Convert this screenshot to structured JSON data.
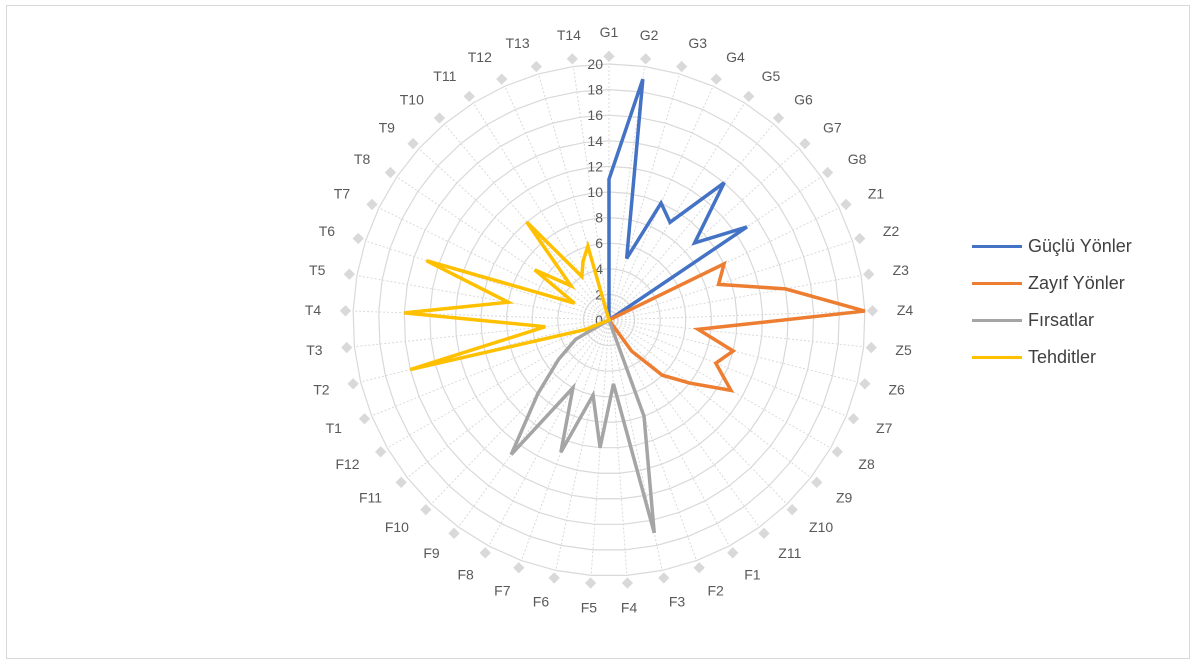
{
  "chart_data": {
    "type": "radar",
    "categories": [
      "G1",
      "G2",
      "G3",
      "G4",
      "G5",
      "G6",
      "G7",
      "G8",
      "Z1",
      "Z2",
      "Z3",
      "Z4",
      "Z5",
      "Z6",
      "Z7",
      "Z8",
      "Z9",
      "Z10",
      "Z11",
      "F1",
      "F2",
      "F3",
      "F4",
      "F5",
      "F6",
      "F7",
      "F8",
      "F9",
      "F10",
      "F11",
      "F12",
      "T1",
      "T2",
      "T3",
      "T4",
      "T5",
      "T6",
      "T7",
      "T8",
      "T9",
      "T10",
      "T11",
      "T12",
      "T13",
      "T14"
    ],
    "axis_ticks": [
      "0",
      "2",
      "4",
      "6",
      "8",
      "10",
      "12",
      "14",
      "16",
      "18",
      "20"
    ],
    "rlim": [
      0,
      20
    ],
    "grid": true,
    "legend_position": "right",
    "series": [
      {
        "name": "Güçlü Yönler",
        "color": "#4472C4",
        "values": [
          11,
          19,
          5,
          10,
          9,
          14,
          9,
          13,
          0,
          0,
          0,
          0,
          0,
          0,
          0,
          0,
          0,
          0,
          0,
          0,
          0,
          0,
          0,
          0,
          0,
          0,
          0,
          0,
          0,
          0,
          0,
          0,
          0,
          0,
          0,
          0,
          0,
          0,
          0,
          0,
          0,
          0,
          0,
          0,
          0
        ]
      },
      {
        "name": "Zayıf Yönler",
        "color": "#ED7D31",
        "values": [
          0,
          0,
          0,
          0,
          0,
          0,
          0,
          0,
          10,
          9,
          14,
          20,
          7,
          10,
          9,
          11,
          8,
          6,
          3,
          0,
          0,
          0,
          0,
          0,
          0,
          0,
          0,
          0,
          0,
          0,
          0,
          0,
          0,
          0,
          0,
          0,
          0,
          0,
          0,
          0,
          0,
          0,
          0,
          0,
          0
        ]
      },
      {
        "name": "Fırsatlar",
        "color": "#A5A5A5",
        "values": [
          0,
          0,
          0,
          0,
          0,
          0,
          0,
          0,
          0,
          0,
          0,
          0,
          0,
          0,
          0,
          0,
          0,
          0,
          0,
          0,
          8,
          17,
          5,
          10,
          6,
          11,
          6,
          13,
          8,
          5,
          3,
          0,
          0,
          0,
          0,
          0,
          0,
          0,
          0,
          0,
          0,
          0,
          0,
          0,
          0
        ]
      },
      {
        "name": "Tehditler",
        "color": "#FFC000",
        "values": [
          0,
          0,
          0,
          0,
          0,
          0,
          0,
          0,
          0,
          0,
          0,
          0,
          0,
          0,
          0,
          0,
          0,
          0,
          0,
          0,
          0,
          0,
          0,
          0,
          0,
          0,
          0,
          0,
          0,
          0,
          0,
          2,
          16,
          5,
          16,
          8,
          15,
          3,
          7,
          4,
          10,
          4,
          5,
          6,
          0
        ]
      }
    ]
  }
}
